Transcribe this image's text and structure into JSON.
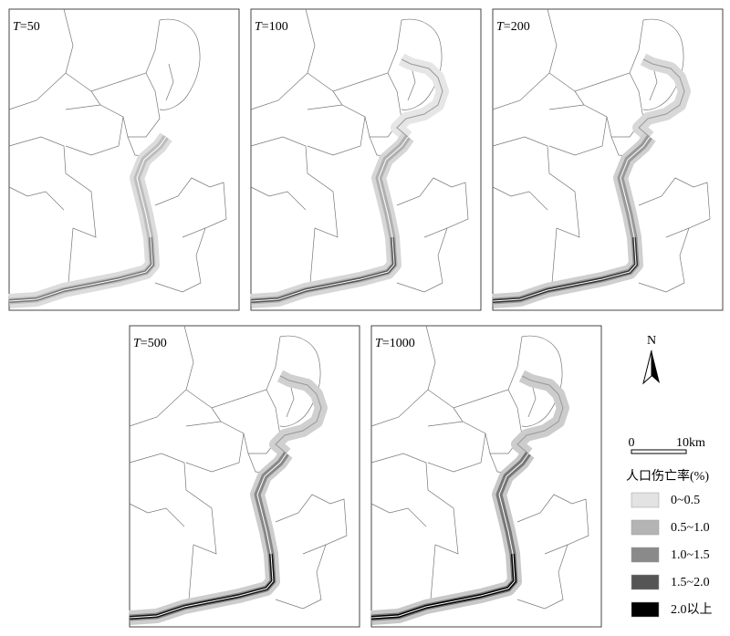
{
  "panels": [
    {
      "symbol": "T",
      "period": "=50"
    },
    {
      "symbol": "T",
      "period": "=100"
    },
    {
      "symbol": "T",
      "period": "=200"
    },
    {
      "symbol": "T",
      "period": "=500"
    },
    {
      "symbol": "T",
      "period": "=1000"
    }
  ],
  "north": "N",
  "scale": {
    "start": "0",
    "end": "10km"
  },
  "legend": {
    "title": "人口伤亡率(%)",
    "items": [
      {
        "label": "0~0.5",
        "color": "#e3e3e3"
      },
      {
        "label": "0.5~1.0",
        "color": "#b4b4b4"
      },
      {
        "label": "1.0~1.5",
        "color": "#8a8a8a"
      },
      {
        "label": "1.5~2.0",
        "color": "#555555"
      },
      {
        "label": "2.0以上",
        "color": "#000000"
      }
    ]
  }
}
